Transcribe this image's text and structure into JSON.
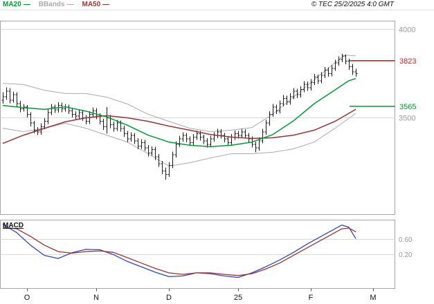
{
  "header": {
    "legend": [
      {
        "label": "MA20",
        "dash": "—",
        "color": "#009933"
      },
      {
        "label": "BBands",
        "dash": "—",
        "color": "#aaaaaa"
      },
      {
        "label": "MA50",
        "dash": "—",
        "color": "#993333"
      }
    ],
    "copyright": "© TEC 25/2/2025 4:0 GMT"
  },
  "chart_data": {
    "type": "candlestick",
    "title": "Daily price chart with Bollinger Bands, MA20, MA50 and MACD",
    "colors": {
      "candle": "#1a1a1a",
      "grid": "#d9d9d9",
      "border": "#a6a6a6",
      "axis_label": "#999999",
      "green": "#009933",
      "red": "#cc2222",
      "maroon": "#993333",
      "blue": "#3344bb",
      "band_gray": "#aaaaaa"
    },
    "price_panel": {
      "ylim": [
        2953,
        4047
      ],
      "gridlines": [
        {
          "value": 4000,
          "label": "4000"
        },
        {
          "value": 3500,
          "label": "3500"
        }
      ],
      "levels": [
        {
          "value": 3823,
          "label": "3823",
          "color": "#cc2222"
        },
        {
          "value": 3565,
          "label": "3565",
          "color": "#009933"
        }
      ]
    },
    "ohlc": [
      [
        3600,
        3645,
        3580,
        3620
      ],
      [
        3620,
        3672,
        3602,
        3650
      ],
      [
        3650,
        3668,
        3582,
        3600
      ],
      [
        3600,
        3648,
        3585,
        3630
      ],
      [
        3630,
        3645,
        3562,
        3580
      ],
      [
        3580,
        3595,
        3532,
        3550
      ],
      [
        3550,
        3578,
        3535,
        3560
      ],
      [
        3560,
        3572,
        3502,
        3520
      ],
      [
        3520,
        3532,
        3452,
        3470
      ],
      [
        3470,
        3482,
        3412,
        3430
      ],
      [
        3430,
        3448,
        3402,
        3420
      ],
      [
        3420,
        3468,
        3405,
        3450
      ],
      [
        3450,
        3498,
        3435,
        3480
      ],
      [
        3480,
        3548,
        3465,
        3530
      ],
      [
        3530,
        3578,
        3515,
        3560
      ],
      [
        3560,
        3575,
        3528,
        3545
      ],
      [
        3545,
        3588,
        3530,
        3570
      ],
      [
        3570,
        3585,
        3532,
        3550
      ],
      [
        3550,
        3578,
        3535,
        3560
      ],
      [
        3560,
        3575,
        3522,
        3540
      ],
      [
        3540,
        3555,
        3502,
        3520
      ],
      [
        3520,
        3538,
        3492,
        3510
      ],
      [
        3510,
        3548,
        3495,
        3530
      ],
      [
        3530,
        3545,
        3482,
        3500
      ],
      [
        3500,
        3515,
        3462,
        3480
      ],
      [
        3480,
        3538,
        3465,
        3520
      ],
      [
        3520,
        3558,
        3505,
        3540
      ],
      [
        3540,
        3555,
        3492,
        3510
      ],
      [
        3510,
        3525,
        3462,
        3480
      ],
      [
        3480,
        3495,
        3432,
        3450
      ],
      [
        3450,
        3560,
        3410,
        3500
      ],
      [
        3500,
        3515,
        3442,
        3460
      ],
      [
        3460,
        3478,
        3422,
        3440
      ],
      [
        3440,
        3488,
        3425,
        3470
      ],
      [
        3470,
        3485,
        3422,
        3440
      ],
      [
        3440,
        3455,
        3392,
        3410
      ],
      [
        3410,
        3425,
        3362,
        3380
      ],
      [
        3380,
        3418,
        3365,
        3400
      ],
      [
        3400,
        3415,
        3352,
        3370
      ],
      [
        3370,
        3385,
        3322,
        3340
      ],
      [
        3340,
        3378,
        3325,
        3360
      ],
      [
        3360,
        3375,
        3312,
        3330
      ],
      [
        3330,
        3345,
        3282,
        3300
      ],
      [
        3300,
        3338,
        3285,
        3320
      ],
      [
        3320,
        3335,
        3262,
        3280
      ],
      [
        3280,
        3295,
        3222,
        3240
      ],
      [
        3240,
        3255,
        3182,
        3200
      ],
      [
        3200,
        3218,
        3150,
        3180
      ],
      [
        3180,
        3248,
        3165,
        3230
      ],
      [
        3230,
        3308,
        3215,
        3290
      ],
      [
        3290,
        3368,
        3275,
        3350
      ],
      [
        3350,
        3398,
        3335,
        3380
      ],
      [
        3380,
        3418,
        3365,
        3400
      ],
      [
        3400,
        3415,
        3362,
        3380
      ],
      [
        3380,
        3395,
        3342,
        3360
      ],
      [
        3360,
        3408,
        3345,
        3390
      ],
      [
        3390,
        3428,
        3375,
        3410
      ],
      [
        3410,
        3425,
        3372,
        3390
      ],
      [
        3390,
        3405,
        3352,
        3370
      ],
      [
        3370,
        3385,
        3332,
        3350
      ],
      [
        3350,
        3398,
        3335,
        3380
      ],
      [
        3380,
        3418,
        3365,
        3400
      ],
      [
        3400,
        3438,
        3385,
        3420
      ],
      [
        3420,
        3435,
        3382,
        3400
      ],
      [
        3400,
        3415,
        3362,
        3380
      ],
      [
        3380,
        3395,
        3342,
        3360
      ],
      [
        3360,
        3408,
        3345,
        3390
      ],
      [
        3390,
        3428,
        3375,
        3410
      ],
      [
        3410,
        3425,
        3382,
        3400
      ],
      [
        3400,
        3438,
        3385,
        3420
      ],
      [
        3420,
        3435,
        3382,
        3400
      ],
      [
        3400,
        3415,
        3362,
        3380
      ],
      [
        3380,
        3395,
        3332,
        3350
      ],
      [
        3350,
        3365,
        3305,
        3330
      ],
      [
        3330,
        3388,
        3315,
        3370
      ],
      [
        3370,
        3438,
        3355,
        3420
      ],
      [
        3420,
        3488,
        3405,
        3470
      ],
      [
        3470,
        3538,
        3455,
        3520
      ],
      [
        3520,
        3578,
        3505,
        3560
      ],
      [
        3560,
        3575,
        3522,
        3540
      ],
      [
        3540,
        3598,
        3525,
        3580
      ],
      [
        3580,
        3628,
        3565,
        3610
      ],
      [
        3610,
        3625,
        3572,
        3590
      ],
      [
        3590,
        3638,
        3575,
        3620
      ],
      [
        3620,
        3668,
        3605,
        3650
      ],
      [
        3650,
        3665,
        3612,
        3630
      ],
      [
        3630,
        3678,
        3615,
        3660
      ],
      [
        3660,
        3708,
        3645,
        3690
      ],
      [
        3690,
        3705,
        3652,
        3670
      ],
      [
        3670,
        3718,
        3655,
        3700
      ],
      [
        3700,
        3748,
        3685,
        3730
      ],
      [
        3730,
        3745,
        3692,
        3710
      ],
      [
        3710,
        3758,
        3695,
        3740
      ],
      [
        3740,
        3788,
        3725,
        3770
      ],
      [
        3770,
        3785,
        3732,
        3750
      ],
      [
        3750,
        3798,
        3735,
        3780
      ],
      [
        3780,
        3828,
        3765,
        3810
      ],
      [
        3810,
        3848,
        3795,
        3830
      ],
      [
        3830,
        3862,
        3815,
        3850
      ],
      [
        3850,
        3858,
        3802,
        3820
      ],
      [
        3820,
        3835,
        3772,
        3790
      ],
      [
        3790,
        3805,
        3742,
        3760
      ],
      [
        3760,
        3778,
        3732,
        3750
      ]
    ],
    "overlays": {
      "bb_upper": {
        "color": "#aaaaaa",
        "points": [
          [
            0,
            3695
          ],
          [
            6,
            3688
          ],
          [
            12,
            3656
          ],
          [
            18,
            3637
          ],
          [
            24,
            3637
          ],
          [
            30,
            3617
          ],
          [
            36,
            3578
          ],
          [
            42,
            3520
          ],
          [
            48,
            3480
          ],
          [
            54,
            3441
          ],
          [
            60,
            3422
          ],
          [
            66,
            3430
          ],
          [
            72,
            3445
          ],
          [
            78,
            3520
          ],
          [
            84,
            3617
          ],
          [
            90,
            3715
          ],
          [
            96,
            3812
          ],
          [
            99,
            3855
          ],
          [
            102,
            3850
          ]
        ]
      },
      "bb_lower": {
        "color": "#aaaaaa",
        "points": [
          [
            0,
            3441
          ],
          [
            6,
            3422
          ],
          [
            12,
            3441
          ],
          [
            18,
            3469
          ],
          [
            24,
            3441
          ],
          [
            30,
            3402
          ],
          [
            36,
            3363
          ],
          [
            42,
            3297
          ],
          [
            48,
            3227
          ],
          [
            54,
            3246
          ],
          [
            60,
            3273
          ],
          [
            66,
            3297
          ],
          [
            72,
            3297
          ],
          [
            78,
            3305
          ],
          [
            84,
            3324
          ],
          [
            90,
            3363
          ],
          [
            96,
            3441
          ],
          [
            102,
            3525
          ]
        ]
      },
      "ma20": {
        "color": "#009933",
        "points": [
          [
            0,
            3570
          ],
          [
            6,
            3558
          ],
          [
            12,
            3548
          ],
          [
            18,
            3562
          ],
          [
            24,
            3538
          ],
          [
            30,
            3505
          ],
          [
            36,
            3458
          ],
          [
            42,
            3402
          ],
          [
            48,
            3363
          ],
          [
            54,
            3345
          ],
          [
            60,
            3337
          ],
          [
            66,
            3345
          ],
          [
            72,
            3363
          ],
          [
            78,
            3405
          ],
          [
            84,
            3483
          ],
          [
            90,
            3580
          ],
          [
            96,
            3658
          ],
          [
            100,
            3710
          ],
          [
            102,
            3722
          ]
        ]
      },
      "ma50": {
        "color": "#993333",
        "points": [
          [
            0,
            3355
          ],
          [
            6,
            3402
          ],
          [
            12,
            3440
          ],
          [
            18,
            3477
          ],
          [
            24,
            3500
          ],
          [
            30,
            3512
          ],
          [
            36,
            3500
          ],
          [
            42,
            3480
          ],
          [
            48,
            3453
          ],
          [
            54,
            3430
          ],
          [
            60,
            3406
          ],
          [
            66,
            3391
          ],
          [
            72,
            3383
          ],
          [
            78,
            3387
          ],
          [
            84,
            3402
          ],
          [
            90,
            3430
          ],
          [
            96,
            3480
          ],
          [
            102,
            3548
          ]
        ]
      }
    },
    "macd_panel": {
      "label": "MACD",
      "ylim": [
        -0.69,
        1.11
      ],
      "gridlines": [
        {
          "value": 0.6,
          "label": "0.60"
        },
        {
          "value": 0.2,
          "label": "0.20"
        }
      ],
      "series": [
        {
          "name": "macd",
          "color": "#3344bb",
          "points": [
            [
              0,
              1.0
            ],
            [
              4,
              0.78
            ],
            [
              8,
              0.45
            ],
            [
              12,
              0.18
            ],
            [
              16,
              0.1
            ],
            [
              20,
              0.25
            ],
            [
              24,
              0.34
            ],
            [
              28,
              0.33
            ],
            [
              32,
              0.2
            ],
            [
              36,
              0.02
            ],
            [
              40,
              -0.12
            ],
            [
              44,
              -0.26
            ],
            [
              48,
              -0.38
            ],
            [
              52,
              -0.36
            ],
            [
              56,
              -0.28
            ],
            [
              60,
              -0.3
            ],
            [
              64,
              -0.36
            ],
            [
              68,
              -0.4
            ],
            [
              72,
              -0.28
            ],
            [
              76,
              -0.12
            ],
            [
              80,
              0.06
            ],
            [
              84,
              0.26
            ],
            [
              88,
              0.48
            ],
            [
              92,
              0.68
            ],
            [
              96,
              0.88
            ],
            [
              98,
              0.98
            ],
            [
              100,
              0.92
            ],
            [
              102,
              0.62
            ]
          ]
        },
        {
          "name": "signal",
          "color": "#993333",
          "points": [
            [
              0,
              0.92
            ],
            [
              4,
              0.88
            ],
            [
              8,
              0.68
            ],
            [
              12,
              0.45
            ],
            [
              16,
              0.28
            ],
            [
              20,
              0.24
            ],
            [
              24,
              0.28
            ],
            [
              28,
              0.3
            ],
            [
              32,
              0.26
            ],
            [
              36,
              0.12
            ],
            [
              40,
              -0.02
            ],
            [
              44,
              -0.16
            ],
            [
              48,
              -0.28
            ],
            [
              52,
              -0.32
            ],
            [
              56,
              -0.28
            ],
            [
              60,
              -0.28
            ],
            [
              64,
              -0.32
            ],
            [
              68,
              -0.35
            ],
            [
              72,
              -0.3
            ],
            [
              76,
              -0.18
            ],
            [
              80,
              -0.02
            ],
            [
              84,
              0.18
            ],
            [
              88,
              0.38
            ],
            [
              92,
              0.58
            ],
            [
              96,
              0.78
            ],
            [
              98,
              0.88
            ],
            [
              100,
              0.9
            ],
            [
              102,
              0.8
            ]
          ]
        }
      ]
    },
    "x_axis": {
      "months": [
        {
          "label": "O",
          "index": 7
        },
        {
          "label": "N",
          "index": 27
        },
        {
          "label": "D",
          "index": 48
        },
        {
          "label": "25",
          "index": 68
        },
        {
          "label": "F",
          "index": 89
        },
        {
          "label": "M",
          "index": 107
        }
      ]
    }
  }
}
